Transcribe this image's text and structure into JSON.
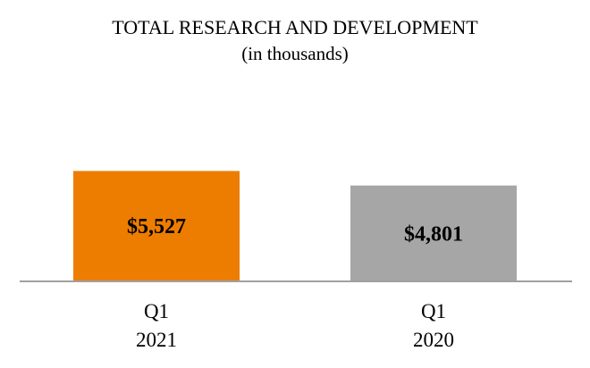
{
  "chart_data": {
    "type": "bar",
    "title": "TOTAL RESEARCH AND DEVELOPMENT",
    "subtitle": "(in thousands)",
    "categories": [
      {
        "line1": "Q1",
        "line2": "2021"
      },
      {
        "line1": "Q1",
        "line2": "2020"
      }
    ],
    "values": [
      5527,
      4801
    ],
    "data_labels": [
      "$5,527",
      "$4,801"
    ],
    "colors": [
      "#ED7D00",
      "#A5A6A5"
    ],
    "axis_color": "#A0A0A0",
    "ylim": [
      0,
      14000
    ],
    "grid": false,
    "legend": "none"
  }
}
